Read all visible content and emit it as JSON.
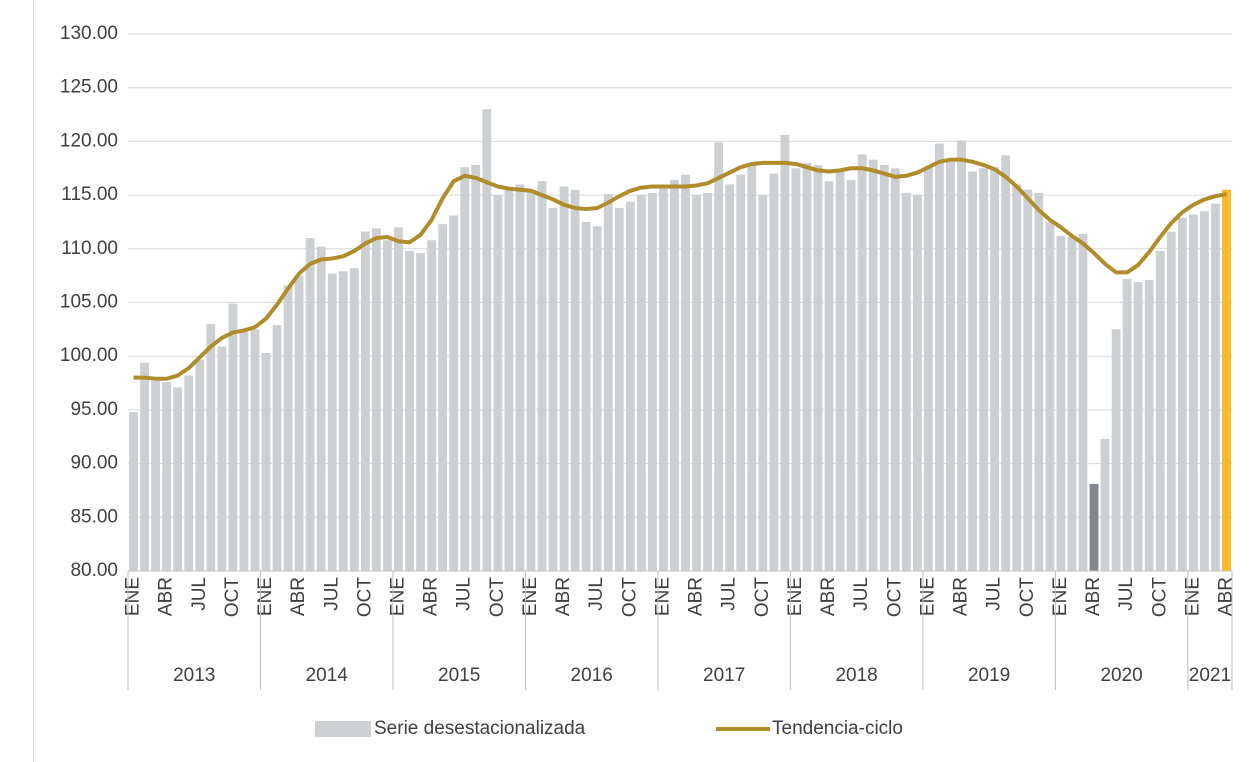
{
  "chart_data": {
    "type": "bar_line",
    "categories": [
      "ENE",
      null,
      null,
      "ABR",
      null,
      null,
      "JUL",
      null,
      null,
      "OCT",
      null,
      null,
      "ENE",
      null,
      null,
      "ABR",
      null,
      null,
      "JUL",
      null,
      null,
      "OCT",
      null,
      null,
      "ENE",
      null,
      null,
      "ABR",
      null,
      null,
      "JUL",
      null,
      null,
      "OCT",
      null,
      null,
      "ENE",
      null,
      null,
      "ABR",
      null,
      null,
      "JUL",
      null,
      null,
      "OCT",
      null,
      null,
      "ENE",
      null,
      null,
      "ABR",
      null,
      null,
      "JUL",
      null,
      null,
      "OCT",
      null,
      null,
      "ENE",
      null,
      null,
      "ABR",
      null,
      null,
      "JUL",
      null,
      null,
      "OCT",
      null,
      null,
      "ENE",
      null,
      null,
      "ABR",
      null,
      null,
      "JUL",
      null,
      null,
      "OCT",
      null,
      null,
      "ENE",
      null,
      null,
      "ABR",
      null,
      null,
      "JUL",
      null,
      null,
      "OCT",
      null,
      null,
      "ENE",
      null,
      null,
      "ABR"
    ],
    "category_groups": [
      "2013",
      "2014",
      "2015",
      "2016",
      "2017",
      "2018",
      "2019",
      "2020",
      "2021"
    ],
    "series": [
      {
        "name": "Serie desestacionalizada",
        "kind": "bar",
        "color": "#cdd0d3",
        "values": [
          94.8,
          99.4,
          97.7,
          97.6,
          97.1,
          98.2,
          99.7,
          103.0,
          100.9,
          104.9,
          102.3,
          102.5,
          100.3,
          102.9,
          106.6,
          107.5,
          111.0,
          110.2,
          107.7,
          107.9,
          108.2,
          111.6,
          111.9,
          110.8,
          112.0,
          109.8,
          109.6,
          110.8,
          112.3,
          113.1,
          117.6,
          117.8,
          123.0,
          115.0,
          115.6,
          116.0,
          115.5,
          116.3,
          113.8,
          115.8,
          115.5,
          112.5,
          112.1,
          115.1,
          113.8,
          114.4,
          115.0,
          115.2,
          115.6,
          116.4,
          116.9,
          115.0,
          115.2,
          119.9,
          116.0,
          116.9,
          118.0,
          115.0,
          117.0,
          120.6,
          117.5,
          118.0,
          117.8,
          116.3,
          117.2,
          116.4,
          118.8,
          118.3,
          117.8,
          117.5,
          115.2,
          115.0,
          117.6,
          119.8,
          118.1,
          120.1,
          117.2,
          117.5,
          117.6,
          118.7,
          116.0,
          115.5,
          115.2,
          112.5,
          111.2,
          111.1,
          111.4,
          88.1,
          92.3,
          102.5,
          107.2,
          106.9,
          107.1,
          109.8,
          111.6,
          112.9,
          113.2,
          113.5,
          114.2,
          115.5
        ],
        "colors": [
          "#cdd0d3",
          "#cdd0d3",
          "#cdd0d3",
          "#cdd0d3",
          "#cdd0d3",
          "#cdd0d3",
          "#cdd0d3",
          "#cdd0d3",
          "#cdd0d3",
          "#cdd0d3",
          "#cdd0d3",
          "#cdd0d3",
          "#cdd0d3",
          "#cdd0d3",
          "#cdd0d3",
          "#cdd0d3",
          "#cdd0d3",
          "#cdd0d3",
          "#cdd0d3",
          "#cdd0d3",
          "#cdd0d3",
          "#cdd0d3",
          "#cdd0d3",
          "#cdd0d3",
          "#cdd0d3",
          "#cdd0d3",
          "#cdd0d3",
          "#cdd0d3",
          "#cdd0d3",
          "#cdd0d3",
          "#cdd0d3",
          "#cdd0d3",
          "#cdd0d3",
          "#cdd0d3",
          "#cdd0d3",
          "#cdd0d3",
          "#cdd0d3",
          "#cdd0d3",
          "#cdd0d3",
          "#cdd0d3",
          "#cdd0d3",
          "#cdd0d3",
          "#cdd0d3",
          "#cdd0d3",
          "#cdd0d3",
          "#cdd0d3",
          "#cdd0d3",
          "#cdd0d3",
          "#cdd0d3",
          "#cdd0d3",
          "#cdd0d3",
          "#cdd0d3",
          "#cdd0d3",
          "#cdd0d3",
          "#cdd0d3",
          "#cdd0d3",
          "#cdd0d3",
          "#cdd0d3",
          "#cdd0d3",
          "#cdd0d3",
          "#cdd0d3",
          "#cdd0d3",
          "#cdd0d3",
          "#cdd0d3",
          "#cdd0d3",
          "#cdd0d3",
          "#cdd0d3",
          "#cdd0d3",
          "#cdd0d3",
          "#cdd0d3",
          "#cdd0d3",
          "#cdd0d3",
          "#cdd0d3",
          "#cdd0d3",
          "#cdd0d3",
          "#cdd0d3",
          "#cdd0d3",
          "#cdd0d3",
          "#cdd0d3",
          "#cdd0d3",
          "#cdd0d3",
          "#cdd0d3",
          "#cdd0d3",
          "#cdd0d3",
          "#cdd0d3",
          "#cdd0d3",
          "#cdd0d3",
          "#7f878c",
          "#cdd0d3",
          "#cdd0d3",
          "#cdd0d3",
          "#cdd0d3",
          "#cdd0d3",
          "#cdd0d3",
          "#cdd0d3",
          "#cdd0d3",
          "#cdd0d3",
          "#cdd0d3",
          "#cdd0d3",
          "#fbb829"
        ]
      },
      {
        "name": "Tendencia-ciclo",
        "kind": "line",
        "color": "#b08c2a",
        "values": [
          98.0,
          98.0,
          97.9,
          97.9,
          98.2,
          98.9,
          99.9,
          100.9,
          101.7,
          102.2,
          102.4,
          102.7,
          103.5,
          104.8,
          106.3,
          107.7,
          108.6,
          109.0,
          109.1,
          109.3,
          109.8,
          110.5,
          111.0,
          111.1,
          110.7,
          110.6,
          111.3,
          112.7,
          114.7,
          116.3,
          116.8,
          116.6,
          116.2,
          115.8,
          115.6,
          115.5,
          115.4,
          115.0,
          114.6,
          114.1,
          113.8,
          113.7,
          113.8,
          114.3,
          114.9,
          115.4,
          115.7,
          115.8,
          115.8,
          115.8,
          115.8,
          115.9,
          116.1,
          116.6,
          117.1,
          117.6,
          117.9,
          118.0,
          118.0,
          118.0,
          117.9,
          117.6,
          117.3,
          117.2,
          117.3,
          117.5,
          117.5,
          117.3,
          117.0,
          116.7,
          116.8,
          117.1,
          117.6,
          118.1,
          118.3,
          118.3,
          118.1,
          117.8,
          117.4,
          116.7,
          115.8,
          114.7,
          113.6,
          112.7,
          112.0,
          111.2,
          110.5,
          109.6,
          108.6,
          107.8,
          107.8,
          108.5,
          109.7,
          111.1,
          112.4,
          113.4,
          114.1,
          114.6,
          114.9,
          115.1
        ]
      }
    ],
    "ylim": [
      80,
      130
    ],
    "yticks": [
      {
        "value": 80,
        "label": "80.00"
      },
      {
        "value": 85,
        "label": "85.00"
      },
      {
        "value": 90,
        "label": "90.00"
      },
      {
        "value": 95,
        "label": "95.00"
      },
      {
        "value": 100,
        "label": "100.00"
      },
      {
        "value": 105,
        "label": "105.00"
      },
      {
        "value": 110,
        "label": "110.00"
      },
      {
        "value": 115,
        "label": "115.00"
      },
      {
        "value": 120,
        "label": "120.00"
      },
      {
        "value": 125,
        "label": "125.00"
      },
      {
        "value": 130,
        "label": "130.00"
      }
    ],
    "grid": true,
    "legend": "bottom"
  }
}
